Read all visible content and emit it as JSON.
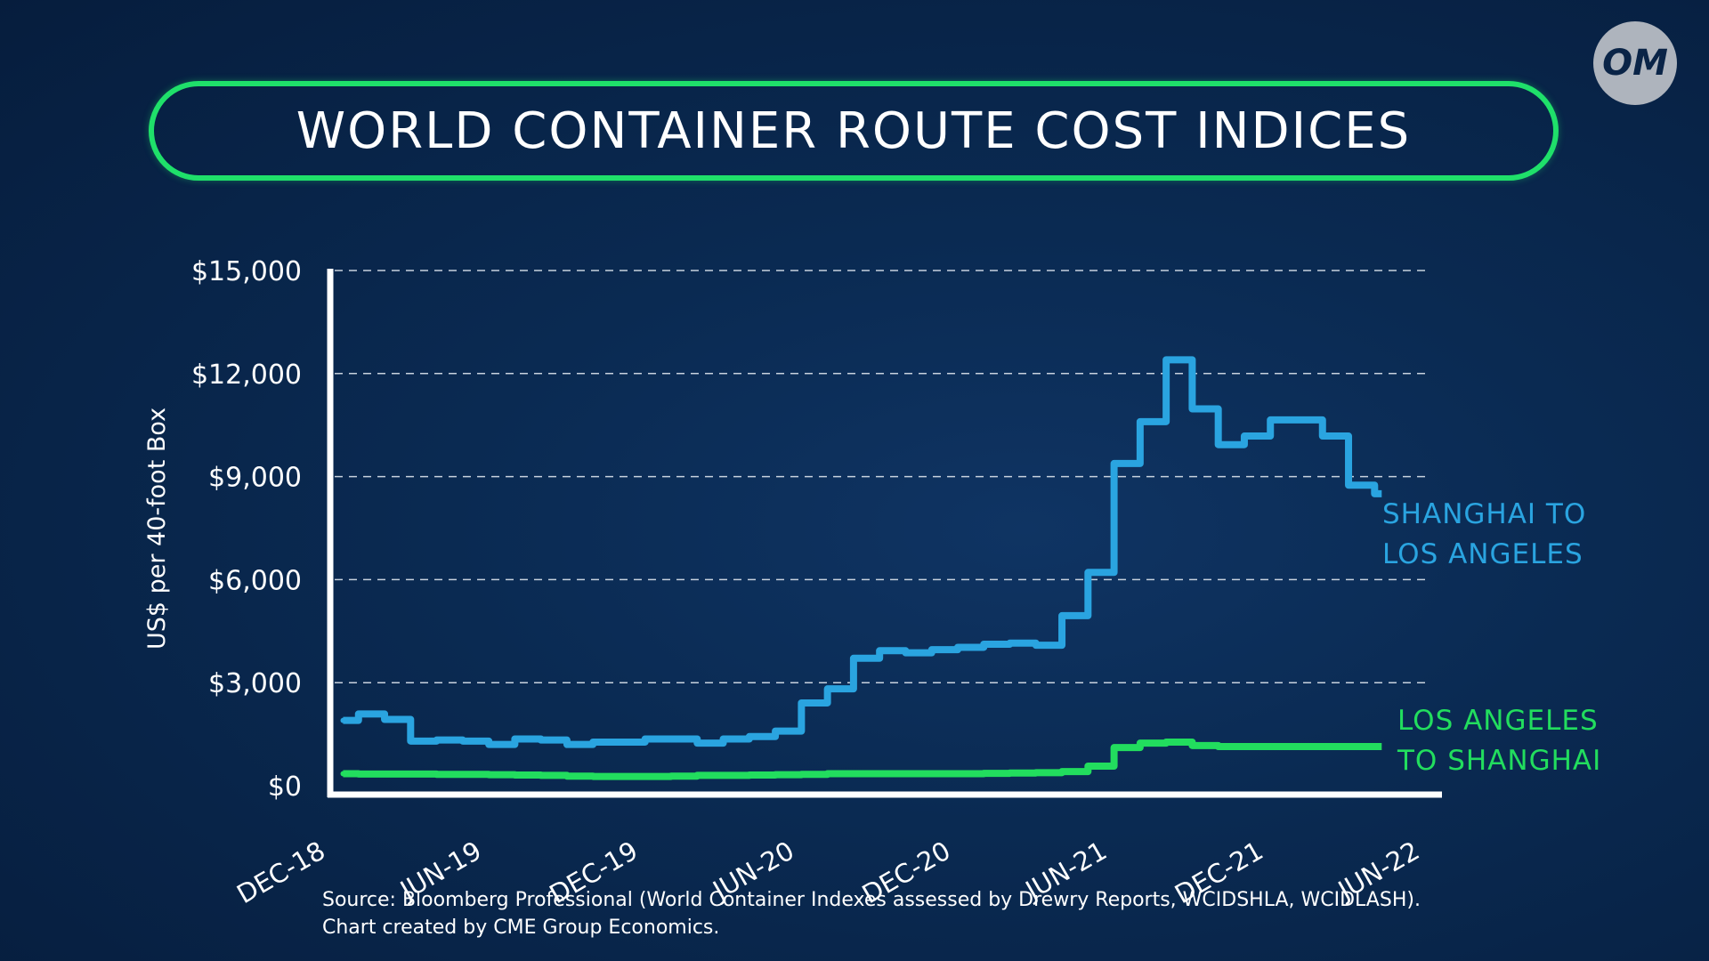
{
  "title": "WORLD CONTAINER ROUTE COST INDICES",
  "logo_text": "OM",
  "source_lines": [
    "Source: Bloomberg Professional (World Container Indexes assessed by Drewry Reports, WCIDSHLA, WCIDLASH).",
    "Chart created by CME Group Economics."
  ],
  "colors": {
    "background": "#0a2a52",
    "title_border": "#1fe06a",
    "shanghai_la": "#2aa4e0",
    "la_shanghai": "#22dd5e"
  },
  "chart_data": {
    "type": "line",
    "title": "WORLD CONTAINER ROUTE COST INDICES",
    "ylabel": "US$ per 40-foot Box",
    "xlabel": "",
    "ylim": [
      0,
      15000
    ],
    "yticks": [
      "$0",
      "$3,000",
      "$6,000",
      "$9,000",
      "$12,000",
      "$15,000"
    ],
    "ytick_values": [
      0,
      3000,
      6000,
      9000,
      12000,
      15000
    ],
    "xticks": [
      "DEC-18",
      "JUN-19",
      "DEC-19",
      "JUN-20",
      "DEC-20",
      "JUN-21",
      "DEC-21",
      "JUN-22"
    ],
    "grid": "horizontal dashed",
    "x": [
      "Dec-18",
      "Jan-19",
      "Feb-19",
      "Mar-19",
      "Apr-19",
      "May-19",
      "Jun-19",
      "Jul-19",
      "Aug-19",
      "Sep-19",
      "Oct-19",
      "Nov-19",
      "Dec-19",
      "Jan-20",
      "Feb-20",
      "Mar-20",
      "Apr-20",
      "May-20",
      "Jun-20",
      "Jul-20",
      "Aug-20",
      "Sep-20",
      "Oct-20",
      "Nov-20",
      "Dec-20",
      "Jan-21",
      "Feb-21",
      "Mar-21",
      "Apr-21",
      "May-21",
      "Jun-21",
      "Jul-21",
      "Aug-21",
      "Sep-21",
      "Oct-21",
      "Nov-21",
      "Dec-21",
      "Jan-22",
      "Feb-22",
      "Mar-22",
      "Apr-22"
    ],
    "series": [
      {
        "name": "SHANGHAI TO LOS ANGELES",
        "name_lines": [
          "SHANGHAI TO",
          "LOS ANGELES"
        ],
        "values": [
          1900,
          2090,
          1930,
          1300,
          1330,
          1300,
          1200,
          1360,
          1330,
          1200,
          1270,
          1270,
          1360,
          1360,
          1240,
          1360,
          1430,
          1590,
          2410,
          2820,
          3710,
          3930,
          3870,
          3960,
          4030,
          4120,
          4150,
          4090,
          4950,
          6210,
          9380,
          10600,
          12400,
          10970,
          9930,
          10180,
          10650,
          10650,
          10180,
          8750,
          8500
        ]
      },
      {
        "name": "LOS ANGELES TO SHANGHAI",
        "name_lines": [
          "LOS ANGELES",
          "TO SHANGHAI"
        ],
        "values": [
          350,
          340,
          340,
          340,
          330,
          330,
          320,
          310,
          300,
          280,
          270,
          270,
          270,
          280,
          300,
          300,
          310,
          320,
          330,
          350,
          350,
          350,
          350,
          350,
          350,
          360,
          370,
          380,
          410,
          570,
          1110,
          1240,
          1270,
          1170,
          1140,
          1140,
          1140,
          1140,
          1140,
          1140,
          1140
        ]
      }
    ]
  }
}
